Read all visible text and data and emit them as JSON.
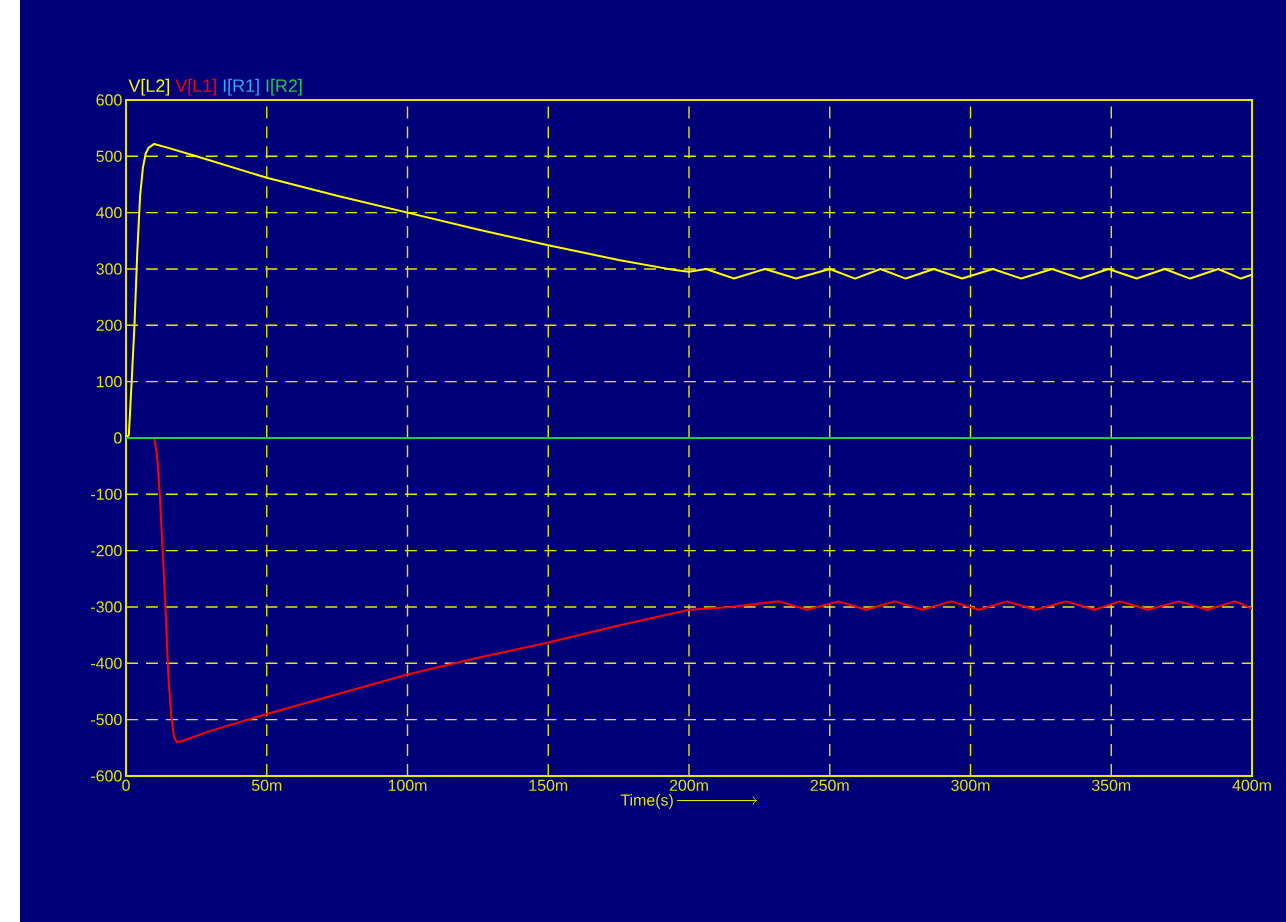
{
  "chart_data": {
    "type": "line",
    "xlabel": "Time(s)",
    "xlim": [
      0,
      400
    ],
    "ylim": [
      -600,
      600
    ],
    "xticks": [
      0,
      {
        "value": 50,
        "label": "50m"
      },
      {
        "value": 100,
        "label": "100m"
      },
      {
        "value": 150,
        "label": "150m"
      },
      {
        "value": 200,
        "label": "200m"
      },
      {
        "value": 250,
        "label": "250m"
      },
      {
        "value": 300,
        "label": "300m"
      },
      {
        "value": 350,
        "label": "350m"
      },
      {
        "value": 400,
        "label": "400m"
      }
    ],
    "yticks": [
      -600,
      -500,
      -400,
      -300,
      -200,
      -100,
      0,
      100,
      200,
      300,
      400,
      500,
      600
    ],
    "grid": true,
    "legend": "top left",
    "marker": "none",
    "line_style": "solid",
    "series": [
      {
        "name": "V[L2]",
        "color": "#ffff00",
        "x": [
          0,
          1,
          2,
          3,
          4,
          5,
          6,
          7,
          8,
          10,
          15,
          25,
          50,
          75,
          100,
          125,
          150,
          175,
          195,
          200,
          206,
          216,
          227,
          238,
          250,
          259,
          268,
          277,
          287,
          297,
          308,
          318,
          329,
          339,
          349,
          359,
          369,
          378,
          388,
          396,
          400
        ],
        "values": [
          0,
          5,
          100,
          200,
          330,
          430,
          480,
          505,
          515,
          522,
          515,
          500,
          462,
          430,
          400,
          370,
          342,
          316,
          298,
          295,
          300,
          283,
          300,
          283,
          300,
          283,
          300,
          283,
          300,
          283,
          300,
          283,
          300,
          283,
          300,
          283,
          300,
          283,
          300,
          283,
          290
        ]
      },
      {
        "name": "V[L1]",
        "color": "#ff0000",
        "x": [
          10,
          11,
          12,
          13,
          14,
          15,
          16,
          17,
          18,
          20,
          30,
          50,
          75,
          100,
          125,
          150,
          175,
          200,
          215,
          232,
          242,
          253,
          263,
          273,
          283,
          293,
          303,
          313,
          323,
          334,
          344,
          353,
          363,
          374,
          384,
          394,
          400
        ],
        "values": [
          0,
          -30,
          -100,
          -200,
          -300,
          -420,
          -490,
          -530,
          -540,
          -538,
          -520,
          -490,
          -455,
          -420,
          -390,
          -363,
          -333,
          -305,
          -300,
          -290,
          -305,
          -290,
          -305,
          -290,
          -305,
          -290,
          -305,
          -290,
          -305,
          -290,
          -305,
          -290,
          -305,
          -290,
          -305,
          -290,
          -303
        ]
      },
      {
        "name": "I[R1]",
        "color": "#33aaff",
        "values": [
          null,
          null
        ]
      },
      {
        "name": "I[R2]",
        "color": "#22cc44",
        "x": [
          0,
          400
        ],
        "values": [
          0,
          0
        ]
      }
    ]
  }
}
